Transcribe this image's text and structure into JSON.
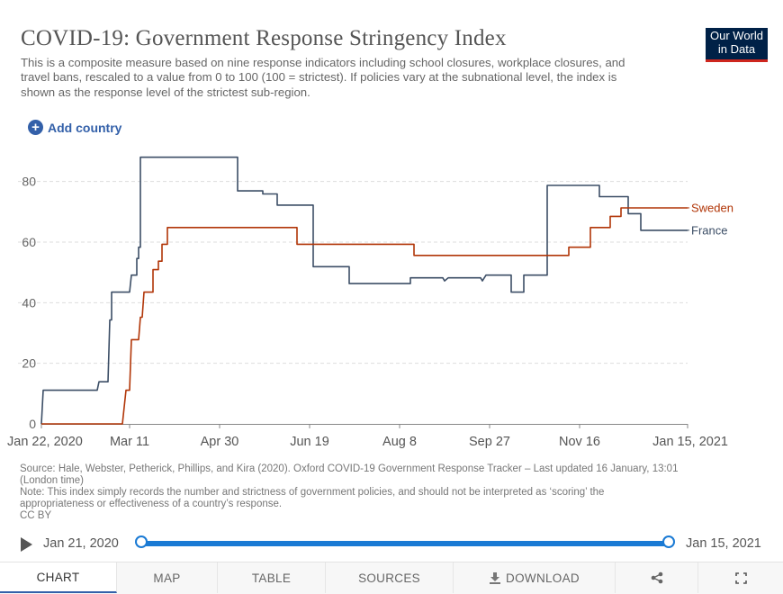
{
  "header": {
    "title": "COVID-19: Government Response Stringency Index",
    "subtitle": "This is a composite measure based on nine response indicators including school closures, workplace closures, and travel bans, rescaled to a value from 0 to 100 (100 = strictest). If policies vary at the subnational level, the index is shown as the response level of the strictest sub-region.",
    "logo_line1": "Our World",
    "logo_line2": "in Data"
  },
  "controls": {
    "add_country_label": "Add country",
    "add_icon": "plus-circle-icon"
  },
  "chart_data": {
    "type": "line",
    "title": "COVID-19: Government Response Stringency Index",
    "xlabel": "",
    "ylabel": "",
    "ylim": [
      0,
      90
    ],
    "yticks": [
      0,
      20,
      40,
      60,
      80
    ],
    "xlim": [
      0,
      359
    ],
    "xticks": [
      {
        "day": 0,
        "label": "Jan 22, 2020"
      },
      {
        "day": 49,
        "label": "Mar 11"
      },
      {
        "day": 99,
        "label": "Apr 30"
      },
      {
        "day": 149,
        "label": "Jun 19"
      },
      {
        "day": 199,
        "label": "Aug 8"
      },
      {
        "day": 249,
        "label": "Sep 27"
      },
      {
        "day": 299,
        "label": "Nov 16"
      },
      {
        "day": 359,
        "label": "Jan 15, 2021"
      }
    ],
    "grid": "horizontal dashed",
    "series": [
      {
        "name": "France",
        "color": "#3c4e66",
        "points": [
          [
            0,
            0
          ],
          [
            1,
            11.1
          ],
          [
            31,
            11.1
          ],
          [
            32,
            13.9
          ],
          [
            37,
            13.9
          ],
          [
            38,
            34.3
          ],
          [
            39,
            34.3
          ],
          [
            39,
            43.5
          ],
          [
            49,
            43.5
          ],
          [
            50,
            49.1
          ],
          [
            53,
            49.1
          ],
          [
            53,
            54.6
          ],
          [
            54,
            54.6
          ],
          [
            54,
            58.3
          ],
          [
            55,
            58.3
          ],
          [
            55,
            88
          ],
          [
            109,
            88
          ],
          [
            109,
            76.9
          ],
          [
            123,
            76.9
          ],
          [
            123,
            75.9
          ],
          [
            131,
            75.9
          ],
          [
            131,
            72.2
          ],
          [
            151,
            72.2
          ],
          [
            151,
            51.9
          ],
          [
            171,
            51.9
          ],
          [
            171,
            46.3
          ],
          [
            205,
            46.3
          ],
          [
            205,
            48.2
          ],
          [
            223,
            48.2
          ],
          [
            224,
            47.2
          ],
          [
            226,
            48.2
          ],
          [
            244,
            48.2
          ],
          [
            245,
            47.2
          ],
          [
            247,
            49.1
          ],
          [
            261,
            49.1
          ],
          [
            261,
            43.5
          ],
          [
            268,
            43.5
          ],
          [
            268,
            49.1
          ],
          [
            281,
            49.1
          ],
          [
            281,
            78.7
          ],
          [
            310,
            78.7
          ],
          [
            310,
            75
          ],
          [
            326,
            75
          ],
          [
            326,
            69.4
          ],
          [
            333,
            69.4
          ],
          [
            333,
            63.9
          ],
          [
            359,
            63.9
          ]
        ]
      },
      {
        "name": "Sweden",
        "color": "#b13507",
        "points": [
          [
            0,
            0
          ],
          [
            45,
            0
          ],
          [
            47,
            11.1
          ],
          [
            49,
            11.1
          ],
          [
            50,
            27.8
          ],
          [
            54,
            27.8
          ],
          [
            55,
            35.2
          ],
          [
            56,
            35.2
          ],
          [
            57,
            43.5
          ],
          [
            62,
            43.5
          ],
          [
            62,
            50.9
          ],
          [
            65,
            50.9
          ],
          [
            65,
            53.7
          ],
          [
            67,
            53.7
          ],
          [
            67,
            59.3
          ],
          [
            70,
            59.3
          ],
          [
            70,
            64.8
          ],
          [
            142,
            64.8
          ],
          [
            142,
            59.3
          ],
          [
            207,
            59.3
          ],
          [
            207,
            55.6
          ],
          [
            293,
            55.6
          ],
          [
            293,
            58.3
          ],
          [
            305,
            58.3
          ],
          [
            305,
            64.8
          ],
          [
            316,
            64.8
          ],
          [
            316,
            68.5
          ],
          [
            322,
            68.5
          ],
          [
            322,
            71.3
          ],
          [
            359,
            71.3
          ]
        ]
      }
    ]
  },
  "source": {
    "line1": "Source: Hale, Webster, Petherick, Phillips, and Kira (2020). Oxford COVID-19 Government Response Tracker – Last updated 16 January, 13:01",
    "line2": "(London time)",
    "line3": "Note: This index simply records the number and strictness of government policies, and should not be interpreted as ‘scoring’ the",
    "line4": "appropriateness or effectiveness of a country’s response.",
    "line5": "CC BY"
  },
  "timeline": {
    "start_label": "Jan 21, 2020",
    "end_label": "Jan 15, 2021",
    "selected_fraction": 1.0
  },
  "tabs": [
    {
      "label": "CHART"
    },
    {
      "label": "MAP"
    },
    {
      "label": "TABLE"
    },
    {
      "label": "SOURCES"
    },
    {
      "label": "DOWNLOAD",
      "icon": "download-icon"
    },
    {
      "label": "",
      "icon": "share-icon"
    },
    {
      "label": "",
      "icon": "fullscreen-icon"
    }
  ]
}
